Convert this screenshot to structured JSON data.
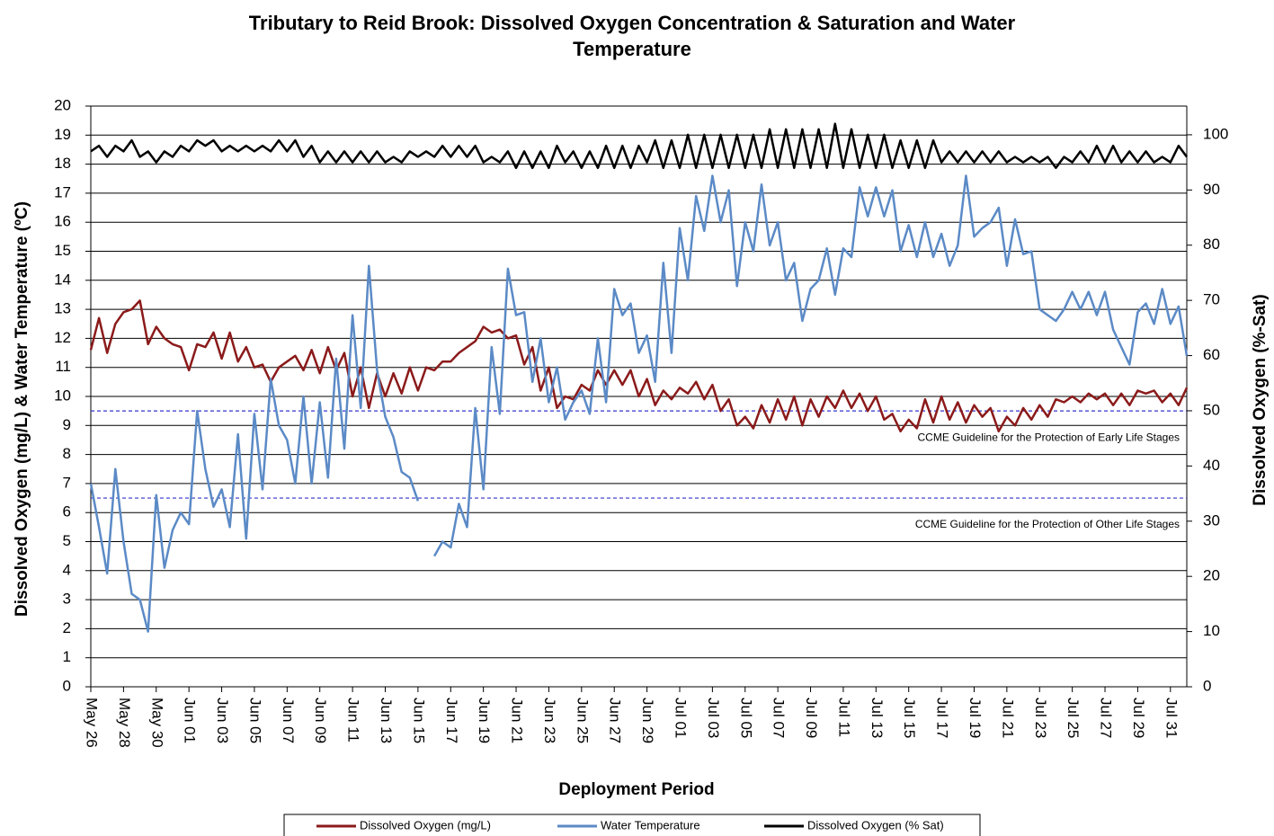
{
  "chart_data": {
    "type": "line",
    "title": [
      "Tributary to Reid Brook: Dissolved Oxygen Concentration & Saturation and Water",
      "Temperature"
    ],
    "x_label": "Deployment Period",
    "y_label": "Dissolved  Oxygen (mg/L) & Water Temperature (ºC)",
    "y2_label": "Dissolved  Oxygen (%-Sat)",
    "xlim": [
      0,
      67
    ],
    "xticks": [
      {
        "value": 0,
        "label": "May 26"
      },
      {
        "value": 2,
        "label": "May 28"
      },
      {
        "value": 4,
        "label": "May 30"
      },
      {
        "value": 6,
        "label": "Jun 01"
      },
      {
        "value": 8,
        "label": "Jun 03"
      },
      {
        "value": 10,
        "label": "Jun 05"
      },
      {
        "value": 12,
        "label": "Jun 07"
      },
      {
        "value": 14,
        "label": "Jun 09"
      },
      {
        "value": 16,
        "label": "Jun 11"
      },
      {
        "value": 18,
        "label": "Jun 13"
      },
      {
        "value": 20,
        "label": "Jun 15"
      },
      {
        "value": 22,
        "label": "Jun 17"
      },
      {
        "value": 24,
        "label": "Jun 19"
      },
      {
        "value": 26,
        "label": "Jun 21"
      },
      {
        "value": 28,
        "label": "Jun 23"
      },
      {
        "value": 30,
        "label": "Jun 25"
      },
      {
        "value": 32,
        "label": "Jun 27"
      },
      {
        "value": 34,
        "label": "Jun 29"
      },
      {
        "value": 36,
        "label": "Jul 01"
      },
      {
        "value": 38,
        "label": "Jul 03"
      },
      {
        "value": 40,
        "label": "Jul 05"
      },
      {
        "value": 42,
        "label": "Jul 07"
      },
      {
        "value": 44,
        "label": "Jul 09"
      },
      {
        "value": 46,
        "label": "Jul 11"
      },
      {
        "value": 48,
        "label": "Jul 13"
      },
      {
        "value": 50,
        "label": "Jul 15"
      },
      {
        "value": 52,
        "label": "Jul 17"
      },
      {
        "value": 54,
        "label": "Jul 19"
      },
      {
        "value": 56,
        "label": "Jul 21"
      },
      {
        "value": 58,
        "label": "Jul 23"
      },
      {
        "value": 60,
        "label": "Jul 25"
      },
      {
        "value": 62,
        "label": "Jul 27"
      },
      {
        "value": 64,
        "label": "Jul 29"
      },
      {
        "value": 66,
        "label": "Jul 31"
      }
    ],
    "ylim": [
      0,
      20
    ],
    "yticks": [
      0,
      1,
      2,
      3,
      4,
      5,
      6,
      7,
      8,
      9,
      10,
      11,
      12,
      13,
      14,
      15,
      16,
      17,
      18,
      19,
      20
    ],
    "y2lim": [
      0,
      105.2
    ],
    "y2ticks": [
      0,
      10,
      20,
      30,
      40,
      50,
      60,
      70,
      80,
      90,
      100
    ],
    "grid": true,
    "guidelines": [
      {
        "value": 9.5,
        "label": "CCME Guideline  for the Protection of Early Life Stages",
        "color": "#3333cc"
      },
      {
        "value": 6.5,
        "label": "CCME Guideline  for the Protection of Other Life Stages",
        "color": "#3333cc"
      }
    ],
    "x": [
      0,
      0.5,
      1,
      1.5,
      2,
      2.5,
      3,
      3.5,
      4,
      4.5,
      5,
      5.5,
      6,
      6.5,
      7,
      7.5,
      8,
      8.5,
      9,
      9.5,
      10,
      10.5,
      11,
      11.5,
      12,
      12.5,
      13,
      13.5,
      14,
      14.5,
      15,
      15.5,
      16,
      16.5,
      17,
      17.5,
      18,
      18.5,
      19,
      19.5,
      20,
      20.5,
      21,
      21.5,
      22,
      22.5,
      23,
      23.5,
      24,
      24.5,
      25,
      25.5,
      26,
      26.5,
      27,
      27.5,
      28,
      28.5,
      29,
      29.5,
      30,
      30.5,
      31,
      31.5,
      32,
      32.5,
      33,
      33.5,
      34,
      34.5,
      35,
      35.5,
      36,
      36.5,
      37,
      37.5,
      38,
      38.5,
      39,
      39.5,
      40,
      40.5,
      41,
      41.5,
      42,
      42.5,
      43,
      43.5,
      44,
      44.5,
      45,
      45.5,
      46,
      46.5,
      47,
      47.5,
      48,
      48.5,
      49,
      49.5,
      50,
      50.5,
      51,
      51.5,
      52,
      52.5,
      53,
      53.5,
      54,
      54.5,
      55,
      55.5,
      56,
      56.5,
      57,
      57.5,
      58,
      58.5,
      59,
      59.5,
      60,
      60.5,
      61,
      61.5,
      62,
      62.5,
      63,
      63.5,
      64,
      64.5,
      65,
      65.5,
      66,
      66.5,
      67
    ],
    "series": [
      {
        "name": "Dissolved Oxygen (mg/L)",
        "color": "#8b1a1a",
        "values": [
          11.6,
          12.7,
          11.5,
          12.5,
          12.9,
          13.0,
          13.3,
          11.8,
          12.4,
          12.0,
          11.8,
          11.7,
          10.9,
          11.8,
          11.7,
          12.2,
          11.3,
          12.2,
          11.2,
          11.7,
          11.0,
          11.1,
          10.5,
          11.0,
          11.2,
          11.4,
          10.9,
          11.6,
          10.8,
          11.7,
          10.9,
          11.5,
          10.0,
          11.0,
          9.6,
          10.8,
          10.0,
          10.8,
          10.1,
          11.0,
          10.2,
          11.0,
          10.9,
          11.2,
          11.2,
          11.5,
          11.7,
          11.9,
          12.4,
          12.2,
          12.3,
          12.0,
          12.1,
          11.1,
          11.7,
          10.2,
          11.0,
          9.6,
          10.0,
          9.9,
          10.4,
          10.2,
          10.9,
          10.4,
          10.9,
          10.4,
          10.9,
          10.0,
          10.6,
          9.7,
          10.2,
          9.9,
          10.3,
          10.1,
          10.5,
          9.9,
          10.4,
          9.5,
          9.9,
          9.0,
          9.3,
          8.9,
          9.7,
          9.1,
          9.9,
          9.2,
          10.0,
          9.0,
          9.9,
          9.3,
          10.0,
          9.6,
          10.2,
          9.6,
          10.1,
          9.5,
          10.0,
          9.2,
          9.4,
          8.8,
          9.2,
          8.9,
          9.9,
          9.1,
          10.0,
          9.2,
          9.8,
          9.1,
          9.7,
          9.3,
          9.6,
          8.8,
          9.3,
          9.0,
          9.6,
          9.2,
          9.7,
          9.3,
          9.9,
          9.8,
          10.0,
          9.8,
          10.1,
          9.9,
          10.1,
          9.7,
          10.1,
          9.7,
          10.2,
          10.1,
          10.2,
          9.8,
          10.1,
          9.7,
          10.3
        ]
      },
      {
        "name": "Water Temperature",
        "color": "#5b8ac6",
        "values": [
          7.0,
          5.5,
          3.9,
          7.5,
          5.0,
          3.2,
          3.0,
          1.9,
          6.6,
          4.1,
          5.4,
          6.0,
          5.6,
          9.5,
          7.5,
          6.2,
          6.8,
          5.5,
          8.7,
          5.1,
          9.4,
          6.8,
          10.6,
          9.0,
          8.5,
          7.0,
          10.0,
          7.0,
          9.8,
          7.2,
          11.3,
          8.2,
          12.8,
          9.6,
          14.5,
          10.9,
          9.3,
          8.6,
          7.4,
          7.2,
          6.4,
          null,
          4.5,
          5.0,
          4.8,
          6.3,
          5.5,
          9.6,
          6.8,
          11.7,
          9.4,
          14.4,
          12.8,
          12.9,
          10.5,
          12.0,
          9.8,
          11.0,
          9.2,
          9.8,
          10.2,
          9.4,
          12.0,
          9.8,
          13.7,
          12.8,
          13.2,
          11.5,
          12.1,
          10.5,
          14.6,
          11.5,
          15.8,
          14.0,
          16.9,
          15.7,
          17.6,
          16.0,
          17.1,
          13.8,
          16.0,
          15.0,
          17.3,
          15.2,
          16.0,
          14.0,
          14.6,
          12.6,
          13.7,
          14.0,
          15.1,
          13.5,
          15.1,
          14.8,
          17.2,
          16.2,
          17.2,
          16.2,
          17.1,
          15.0,
          15.9,
          14.8,
          16.0,
          14.8,
          15.6,
          14.5,
          15.2,
          17.6,
          15.5,
          15.8,
          16.0,
          16.5,
          14.5,
          16.1,
          14.9,
          15.0,
          13.0,
          12.8,
          12.6,
          13.0,
          13.6,
          13.0,
          13.6,
          12.8,
          13.6,
          12.3,
          11.7,
          11.1,
          12.9,
          13.2,
          12.5,
          13.7,
          12.5,
          13.1,
          11.4
        ]
      },
      {
        "name": "Dissolved Oxygen (% Sat)",
        "color": "#000000",
        "axis": "y2",
        "values": [
          97,
          98,
          96,
          98,
          97,
          99,
          96,
          97,
          95,
          97,
          96,
          98,
          97,
          99,
          98,
          99,
          97,
          98,
          97,
          98,
          97,
          98,
          97,
          99,
          97,
          99,
          96,
          98,
          95,
          97,
          95,
          97,
          95,
          97,
          95,
          97,
          95,
          96,
          95,
          97,
          96,
          97,
          96,
          98,
          96,
          98,
          96,
          98,
          95,
          96,
          95,
          97,
          94,
          97,
          94,
          97,
          94,
          98,
          95,
          97,
          94,
          97,
          94,
          98,
          94,
          98,
          94,
          98,
          95,
          99,
          94,
          99,
          94,
          100,
          94,
          100,
          94,
          100,
          94,
          100,
          94,
          100,
          94,
          101,
          94,
          101,
          94,
          101,
          94,
          101,
          94,
          102,
          94,
          101,
          94,
          100,
          94,
          100,
          94,
          99,
          94,
          99,
          94,
          99,
          95,
          97,
          95,
          97,
          95,
          97,
          95,
          97,
          95,
          96,
          95,
          96,
          95,
          96,
          94,
          96,
          95,
          97,
          95,
          98,
          95,
          98,
          95,
          97,
          95,
          97,
          95,
          96,
          95,
          98,
          96
        ]
      }
    ]
  }
}
